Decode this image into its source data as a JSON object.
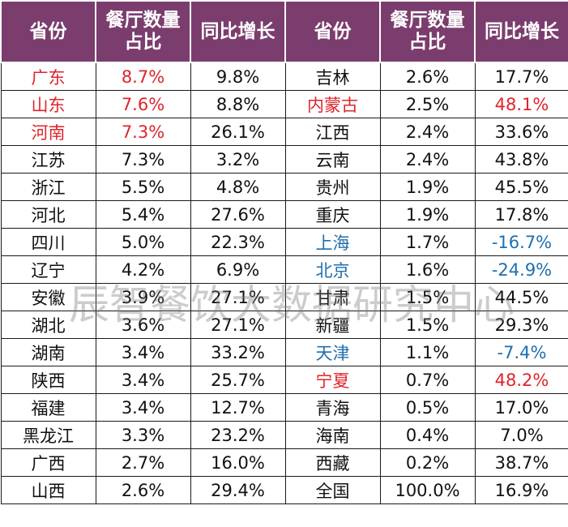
{
  "headers": [
    "省份",
    "餐厅数量\n占比",
    "同比增长",
    "省份",
    "餐厅数量\n占比",
    "同比增长"
  ],
  "rows": [
    [
      {
        "t": "广东",
        "c": "red"
      },
      {
        "t": "8.7%",
        "c": "red"
      },
      {
        "t": "9.8%"
      },
      {
        "t": "吉林"
      },
      {
        "t": "2.6%"
      },
      {
        "t": "17.7%"
      }
    ],
    [
      {
        "t": "山东",
        "c": "red"
      },
      {
        "t": "7.6%",
        "c": "red"
      },
      {
        "t": "8.8%"
      },
      {
        "t": "内蒙古",
        "c": "red"
      },
      {
        "t": "2.5%"
      },
      {
        "t": "48.1%",
        "c": "red"
      }
    ],
    [
      {
        "t": "河南",
        "c": "red"
      },
      {
        "t": "7.3%",
        "c": "red"
      },
      {
        "t": "26.1%"
      },
      {
        "t": "江西"
      },
      {
        "t": "2.4%"
      },
      {
        "t": "33.6%"
      }
    ],
    [
      {
        "t": "江苏"
      },
      {
        "t": "7.3%"
      },
      {
        "t": "3.2%"
      },
      {
        "t": "云南"
      },
      {
        "t": "2.4%"
      },
      {
        "t": "43.8%"
      }
    ],
    [
      {
        "t": "浙江"
      },
      {
        "t": "5.5%"
      },
      {
        "t": "4.8%"
      },
      {
        "t": "贵州"
      },
      {
        "t": "1.9%"
      },
      {
        "t": "45.5%"
      }
    ],
    [
      {
        "t": "河北"
      },
      {
        "t": "5.4%"
      },
      {
        "t": "27.6%"
      },
      {
        "t": "重庆"
      },
      {
        "t": "1.9%"
      },
      {
        "t": "17.8%"
      }
    ],
    [
      {
        "t": "四川"
      },
      {
        "t": "5.0%"
      },
      {
        "t": "22.3%"
      },
      {
        "t": "上海",
        "c": "blue"
      },
      {
        "t": "1.7%"
      },
      {
        "t": "-16.7%",
        "c": "blue"
      }
    ],
    [
      {
        "t": "辽宁"
      },
      {
        "t": "4.2%"
      },
      {
        "t": "6.9%"
      },
      {
        "t": "北京",
        "c": "blue"
      },
      {
        "t": "1.6%"
      },
      {
        "t": "-24.9%",
        "c": "blue"
      }
    ],
    [
      {
        "t": "安徽"
      },
      {
        "t": "3.9%"
      },
      {
        "t": "27.1%"
      },
      {
        "t": "甘肃"
      },
      {
        "t": "1.5%"
      },
      {
        "t": "44.5%"
      }
    ],
    [
      {
        "t": "湖北"
      },
      {
        "t": "3.6%"
      },
      {
        "t": "27.1%"
      },
      {
        "t": "新疆"
      },
      {
        "t": "1.5%"
      },
      {
        "t": "29.3%"
      }
    ],
    [
      {
        "t": "湖南"
      },
      {
        "t": "3.4%"
      },
      {
        "t": "33.2%"
      },
      {
        "t": "天津",
        "c": "blue"
      },
      {
        "t": "1.1%"
      },
      {
        "t": "-7.4%",
        "c": "blue"
      }
    ],
    [
      {
        "t": "陕西"
      },
      {
        "t": "3.4%"
      },
      {
        "t": "25.7%"
      },
      {
        "t": "宁夏",
        "c": "red"
      },
      {
        "t": "0.7%"
      },
      {
        "t": "48.2%",
        "c": "red"
      }
    ],
    [
      {
        "t": "福建"
      },
      {
        "t": "3.4%"
      },
      {
        "t": "12.7%"
      },
      {
        "t": "青海"
      },
      {
        "t": "0.5%"
      },
      {
        "t": "17.0%"
      }
    ],
    [
      {
        "t": "黑龙江"
      },
      {
        "t": "3.3%"
      },
      {
        "t": "23.2%"
      },
      {
        "t": "海南"
      },
      {
        "t": "0.4%"
      },
      {
        "t": "7.0%"
      }
    ],
    [
      {
        "t": "广西"
      },
      {
        "t": "2.7%"
      },
      {
        "t": "16.0%"
      },
      {
        "t": "西藏"
      },
      {
        "t": "0.2%"
      },
      {
        "t": "38.7%"
      }
    ],
    [
      {
        "t": "山西"
      },
      {
        "t": "2.6%"
      },
      {
        "t": "29.4%"
      },
      {
        "t": "全国"
      },
      {
        "t": "100.0%"
      },
      {
        "t": "16.9%"
      }
    ]
  ],
  "watermark": "辰智餐饮大数据研究中心",
  "colors": {
    "header_bg": "#7b3d6e",
    "header_text": "#ffffff",
    "highlight_red": "#e0242b",
    "highlight_blue": "#1f6fae"
  }
}
